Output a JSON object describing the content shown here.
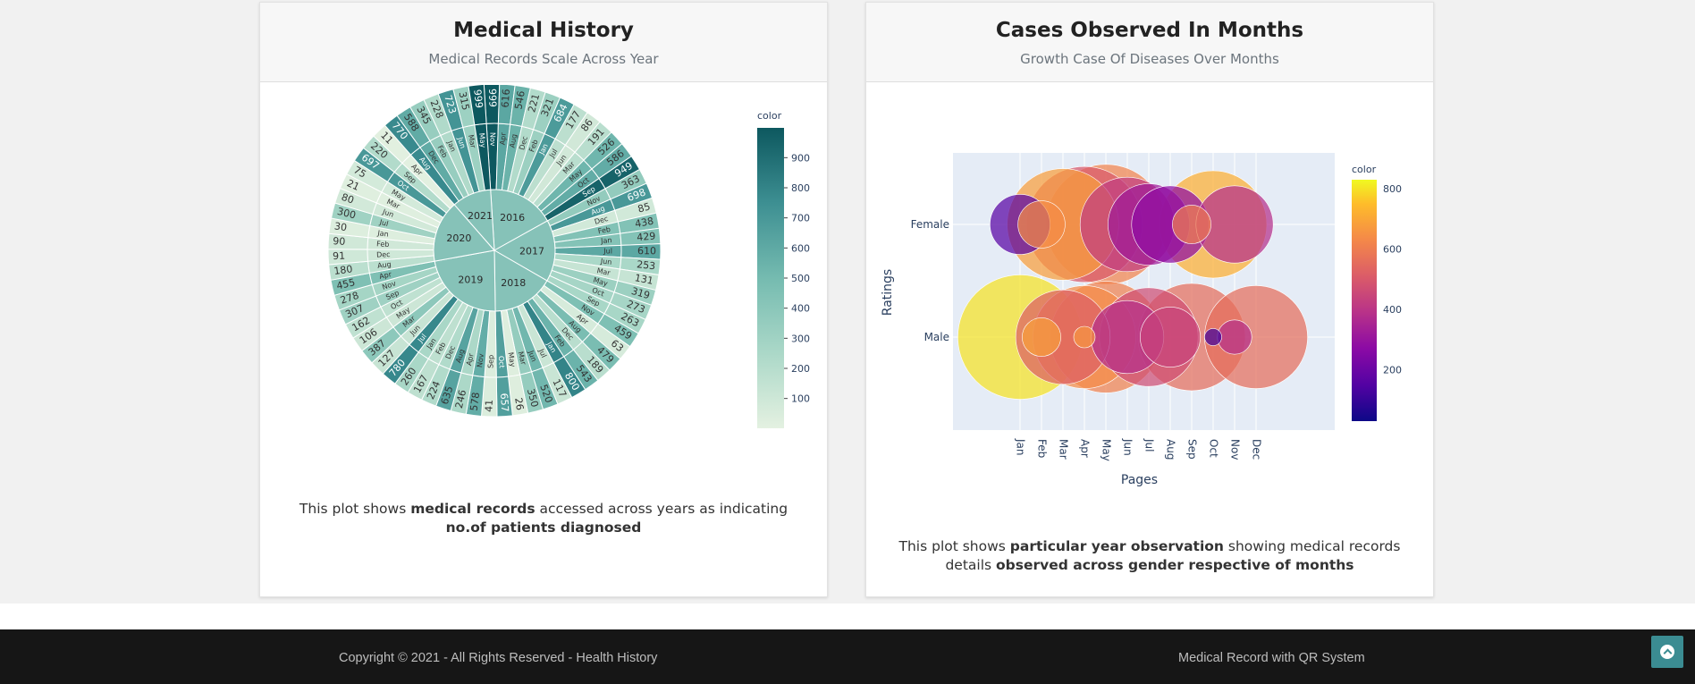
{
  "card1": {
    "title": "Medical History",
    "subtitle": "Medical Records Scale Across Year",
    "caption": {
      "p1": "This plot shows ",
      "b1": "medical records",
      "p2": " accessed across years as indicating ",
      "b2": "no.of patients diagnosed"
    }
  },
  "card2": {
    "title": "Cases Observed In Months",
    "subtitle": "Growth Case Of Diseases Over Months",
    "caption": {
      "p1": "This plot shows ",
      "b1": "particular year observation",
      "p2": " showing medical records details ",
      "b2": "observed across gender respective of months"
    }
  },
  "footer": {
    "copyright": "Copyright © 2021 - All Rights Reserved - Health History",
    "brand": "Medical Record with QR System"
  },
  "icons": {
    "scroll_top": "chevron-up-icon"
  },
  "colors": {
    "teal_dark": "#0f5c63",
    "teal_light": "#e4f1e1",
    "footer_bg": "#161616",
    "totop_bg": "#3b8c92"
  },
  "chart_data": [
    {
      "type": "sunburst",
      "colorbar": {
        "title": "color",
        "ticks": [
          100,
          200,
          300,
          400,
          500,
          600,
          700,
          800,
          900
        ],
        "range": [
          1,
          999
        ]
      },
      "years": [
        {
          "label": "2016",
          "months": [
            [
              "Nov",
              999
            ],
            [
              "Apr",
              616
            ],
            [
              "Aug",
              546
            ],
            [
              "Dec",
              221
            ],
            [
              "Feb",
              321
            ],
            [
              "Jan",
              684
            ],
            [
              "Jul",
              177
            ],
            [
              "Jun",
              86
            ],
            [
              "Mar",
              191
            ],
            [
              "May",
              526
            ],
            [
              "Oct",
              586
            ],
            [
              "Sep",
              949
            ]
          ]
        },
        {
          "label": "2017",
          "months": [
            [
              "Nov",
              363
            ],
            [
              "Aug",
              698
            ],
            [
              "Dec",
              85
            ],
            [
              "Feb",
              438
            ],
            [
              "Jan",
              429
            ],
            [
              "Jul",
              610
            ],
            [
              "Jun",
              253
            ],
            [
              "Mar",
              131
            ],
            [
              "May",
              319
            ],
            [
              "Oct",
              273
            ],
            [
              "Sep",
              263
            ]
          ]
        },
        {
          "label": "2018",
          "months": [
            [
              "Nov",
              459
            ],
            [
              "Apr",
              63
            ],
            [
              "Aug",
              479
            ],
            [
              "Dec",
              189
            ],
            [
              "Feb",
              543
            ],
            [
              "Jan",
              800
            ],
            [
              "Jul",
              117
            ],
            [
              "Jun",
              520
            ],
            [
              "Mar",
              350
            ],
            [
              "May",
              26
            ],
            [
              "Oct",
              657
            ]
          ]
        },
        {
          "label": "2019",
          "months": [
            [
              "Sep",
              41
            ],
            [
              "Nov",
              578
            ],
            [
              "Apr",
              246
            ],
            [
              "Aug",
              635
            ],
            [
              "Dec",
              224
            ],
            [
              "Feb",
              167
            ],
            [
              "Jan",
              260
            ],
            [
              "Jul",
              780
            ],
            [
              "Jun",
              127
            ],
            [
              "Mar",
              387
            ],
            [
              "May",
              106
            ],
            [
              "Oct",
              162
            ],
            [
              "Sep",
              307
            ],
            [
              "Nov",
              278
            ],
            [
              "Apr",
              455
            ]
          ]
        },
        {
          "label": "2020",
          "months": [
            [
              "Aug",
              180
            ],
            [
              "Dec",
              91
            ],
            [
              "Feb",
              90
            ],
            [
              "Jan",
              30
            ],
            [
              "Jul",
              300
            ],
            [
              "Jun",
              80
            ],
            [
              "Mar",
              21
            ],
            [
              "May",
              75
            ],
            [
              "Oct",
              697
            ],
            [
              "Sep",
              220
            ],
            [
              "Apr",
              11
            ]
          ]
        },
        {
          "label": "2021",
          "months": [
            [
              "Aug",
              770
            ],
            [
              "Dec",
              588
            ],
            [
              "Feb",
              345
            ],
            [
              "Jan",
              228
            ],
            [
              "Jun",
              723
            ],
            [
              "Mar",
              315
            ],
            [
              "May",
              999
            ]
          ]
        }
      ]
    },
    {
      "type": "scatter",
      "xlabel": "Pages",
      "ylabel": "Ratings",
      "categories_x": [
        "Jan",
        "Feb",
        "Mar",
        "Apr",
        "May",
        "Jun",
        "Jul",
        "Aug",
        "Sep",
        "Oct",
        "Nov",
        "Dec"
      ],
      "categories_y": [
        "Female",
        "Male"
      ],
      "colorbar": {
        "title": "color",
        "ticks": [
          200,
          400,
          600,
          800
        ],
        "range": [
          30,
          830
        ]
      },
      "series": [
        {
          "values": [
            {
              "x": "Jan",
              "y": "Female",
              "size": 28,
              "color": 160
            },
            {
              "x": "Feb",
              "y": "Female",
              "size": 22,
              "color": 640
            },
            {
              "x": "Mar",
              "y": "Female",
              "size": 52,
              "color": 680
            },
            {
              "x": "Apr",
              "y": "Female",
              "size": 54,
              "color": 500
            },
            {
              "x": "May",
              "y": "Female",
              "size": 56,
              "color": 620
            },
            {
              "x": "Jun",
              "y": "Female",
              "size": 44,
              "color": 420
            },
            {
              "x": "Jul",
              "y": "Female",
              "size": 38,
              "color": 320
            },
            {
              "x": "Aug",
              "y": "Female",
              "size": 36,
              "color": 280
            },
            {
              "x": "Sep",
              "y": "Female",
              "size": 18,
              "color": 600
            },
            {
              "x": "Oct",
              "y": "Female",
              "size": 50,
              "color": 720
            },
            {
              "x": "Nov",
              "y": "Female",
              "size": 36,
              "color": 380
            },
            {
              "x": "Jan",
              "y": "Male",
              "size": 58,
              "color": 800
            },
            {
              "x": "Feb",
              "y": "Male",
              "size": 18,
              "color": 680
            },
            {
              "x": "Mar",
              "y": "Male",
              "size": 44,
              "color": 520
            },
            {
              "x": "Apr",
              "y": "Male",
              "size": 10,
              "color": 660
            },
            {
              "x": "Apr",
              "y": "Male",
              "size": 48,
              "color": 640
            },
            {
              "x": "May",
              "y": "Male",
              "size": 52,
              "color": 610
            },
            {
              "x": "Jun",
              "y": "Male",
              "size": 34,
              "color": 380
            },
            {
              "x": "Jul",
              "y": "Male",
              "size": 46,
              "color": 470
            },
            {
              "x": "Aug",
              "y": "Male",
              "size": 28,
              "color": 440
            },
            {
              "x": "Sep",
              "y": "Male",
              "size": 50,
              "color": 560
            },
            {
              "x": "Oct",
              "y": "Male",
              "size": 8,
              "color": 120
            },
            {
              "x": "Nov",
              "y": "Male",
              "size": 16,
              "color": 380
            },
            {
              "x": "Dec",
              "y": "Male",
              "size": 48,
              "color": 560
            }
          ]
        }
      ]
    }
  ]
}
